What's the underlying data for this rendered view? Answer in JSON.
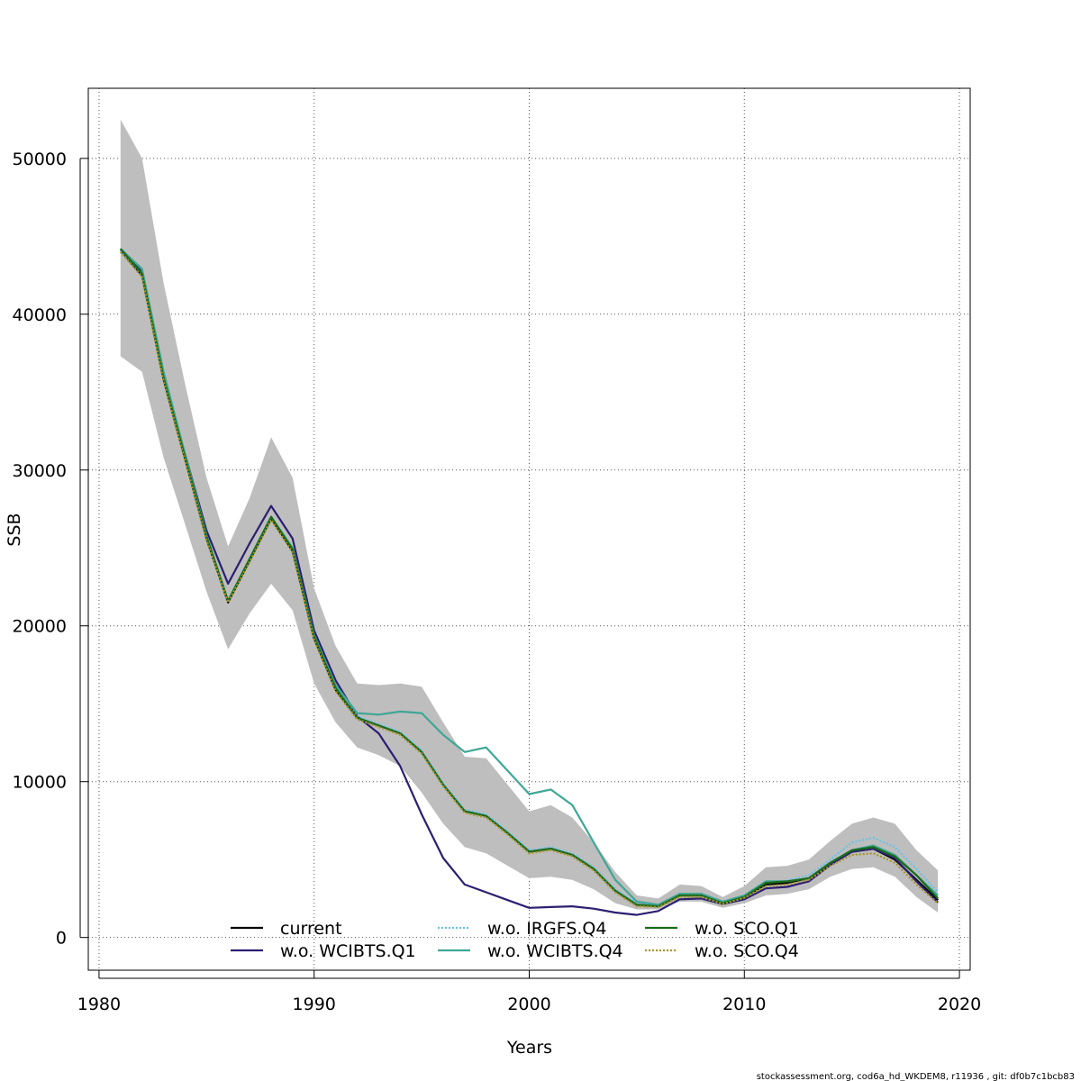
{
  "chart_data": {
    "type": "line",
    "xlabel": "Years",
    "ylabel": "SSB",
    "xlim": [
      1979.5,
      2020.5
    ],
    "ylim": [
      -2100,
      54500
    ],
    "xticks": [
      1980,
      1990,
      2000,
      2010,
      2020
    ],
    "yticks": [
      0,
      10000,
      20000,
      30000,
      40000,
      50000
    ],
    "grid": true,
    "grid_style": "dotted",
    "legend_placement": "bottom-center",
    "footer": "stockassessment.org, cod6a_hd_WKDEM8, r11936 , git: df0b7c1bcb83",
    "x": [
      1981,
      1982,
      1983,
      1984,
      1985,
      1986,
      1987,
      1988,
      1989,
      1990,
      1991,
      1992,
      1993,
      1994,
      1995,
      1996,
      1997,
      1998,
      1999,
      2000,
      2001,
      2002,
      2003,
      2004,
      2005,
      2006,
      2007,
      2008,
      2009,
      2010,
      2011,
      2012,
      2013,
      2014,
      2015,
      2016,
      2017,
      2018,
      2019
    ],
    "confidence_band": {
      "color": "#bebebe",
      "lower": [
        37300,
        36300,
        30800,
        26500,
        22200,
        18500,
        20800,
        22700,
        21000,
        16300,
        13800,
        12200,
        11700,
        11000,
        9300,
        7300,
        5800,
        5400,
        4600,
        3800,
        3900,
        3700,
        3100,
        2200,
        1800,
        1800,
        2300,
        2300,
        1900,
        2200,
        2700,
        2800,
        3100,
        3900,
        4400,
        4500,
        3900,
        2600,
        1600
      ],
      "upper": [
        52500,
        50000,
        42000,
        35500,
        29500,
        25100,
        28200,
        32100,
        29500,
        22400,
        18700,
        16300,
        16200,
        16300,
        16100,
        13800,
        11600,
        11500,
        9800,
        8100,
        8500,
        7700,
        6100,
        4200,
        2700,
        2500,
        3400,
        3300,
        2600,
        3300,
        4500,
        4600,
        5000,
        6200,
        7300,
        7700,
        7300,
        5600,
        4300
      ]
    },
    "series": [
      {
        "name": "current",
        "color": "#000000",
        "dash": "solid",
        "values": [
          44100,
          42500,
          35800,
          30700,
          25600,
          21500,
          24200,
          26900,
          24800,
          19200,
          15900,
          14100,
          13600,
          13100,
          11900,
          9800,
          8100,
          7800,
          6700,
          5500,
          5700,
          5300,
          4400,
          3000,
          2100,
          2000,
          2700,
          2700,
          2200,
          2600,
          3400,
          3500,
          3800,
          4700,
          5500,
          5700,
          5000,
          3700,
          2400
        ]
      },
      {
        "name": "w.o. WCIBTS.Q1",
        "color": "#2c1f72",
        "dash": "solid",
        "values": [
          44200,
          42700,
          36000,
          31000,
          26100,
          22700,
          25300,
          27700,
          25600,
          19700,
          16500,
          14200,
          13100,
          11000,
          7900,
          5100,
          3400,
          2900,
          2400,
          1900,
          1950,
          2000,
          1850,
          1600,
          1450,
          1700,
          2450,
          2500,
          2150,
          2450,
          3150,
          3250,
          3600,
          4650,
          5500,
          5700,
          5100,
          3600,
          2250
        ]
      },
      {
        "name": "w.o. IRGFS.Q4",
        "color": "#67c1e8",
        "dash": "dotted",
        "values": [
          44100,
          42600,
          35900,
          30800,
          25700,
          21600,
          24300,
          27000,
          24900,
          19300,
          16000,
          14200,
          13700,
          13200,
          12000,
          9900,
          8200,
          7900,
          6800,
          5600,
          5800,
          5400,
          4500,
          3100,
          2200,
          2050,
          2750,
          2750,
          2250,
          2700,
          3500,
          3650,
          4000,
          5000,
          6100,
          6400,
          5800,
          4400,
          2900
        ]
      },
      {
        "name": "w.o. WCIBTS.Q4",
        "color": "#3fa796",
        "dash": "solid",
        "values": [
          44200,
          42900,
          36300,
          31000,
          25800,
          21600,
          24300,
          27000,
          25000,
          19400,
          16200,
          14400,
          14300,
          14500,
          14400,
          13000,
          11900,
          12200,
          10700,
          9200,
          9500,
          8500,
          6100,
          3700,
          2300,
          2100,
          2800,
          2800,
          2300,
          2700,
          3600,
          3600,
          3800,
          4800,
          5600,
          5900,
          5300,
          4000,
          2700
        ]
      },
      {
        "name": "w.o. SCO.Q1",
        "color": "#1a6b1a",
        "dash": "solid",
        "values": [
          44200,
          42600,
          35900,
          30800,
          25700,
          21600,
          24300,
          27000,
          24900,
          19300,
          16000,
          14100,
          13600,
          13100,
          11900,
          9800,
          8100,
          7800,
          6700,
          5500,
          5700,
          5300,
          4400,
          3000,
          2100,
          2000,
          2700,
          2700,
          2200,
          2600,
          3500,
          3600,
          3800,
          4800,
          5600,
          5800,
          5200,
          4000,
          2500
        ]
      },
      {
        "name": "w.o. SCO.Q4",
        "color": "#a99328",
        "dash": "dotted",
        "values": [
          44000,
          42400,
          35700,
          30600,
          25500,
          21500,
          24100,
          26800,
          24700,
          19100,
          15800,
          14000,
          13500,
          13000,
          11800,
          9700,
          8000,
          7700,
          6600,
          5400,
          5600,
          5200,
          4300,
          2900,
          2000,
          1950,
          2600,
          2600,
          2150,
          2550,
          3300,
          3400,
          3700,
          4600,
          5300,
          5400,
          4800,
          3400,
          2200
        ]
      }
    ]
  }
}
